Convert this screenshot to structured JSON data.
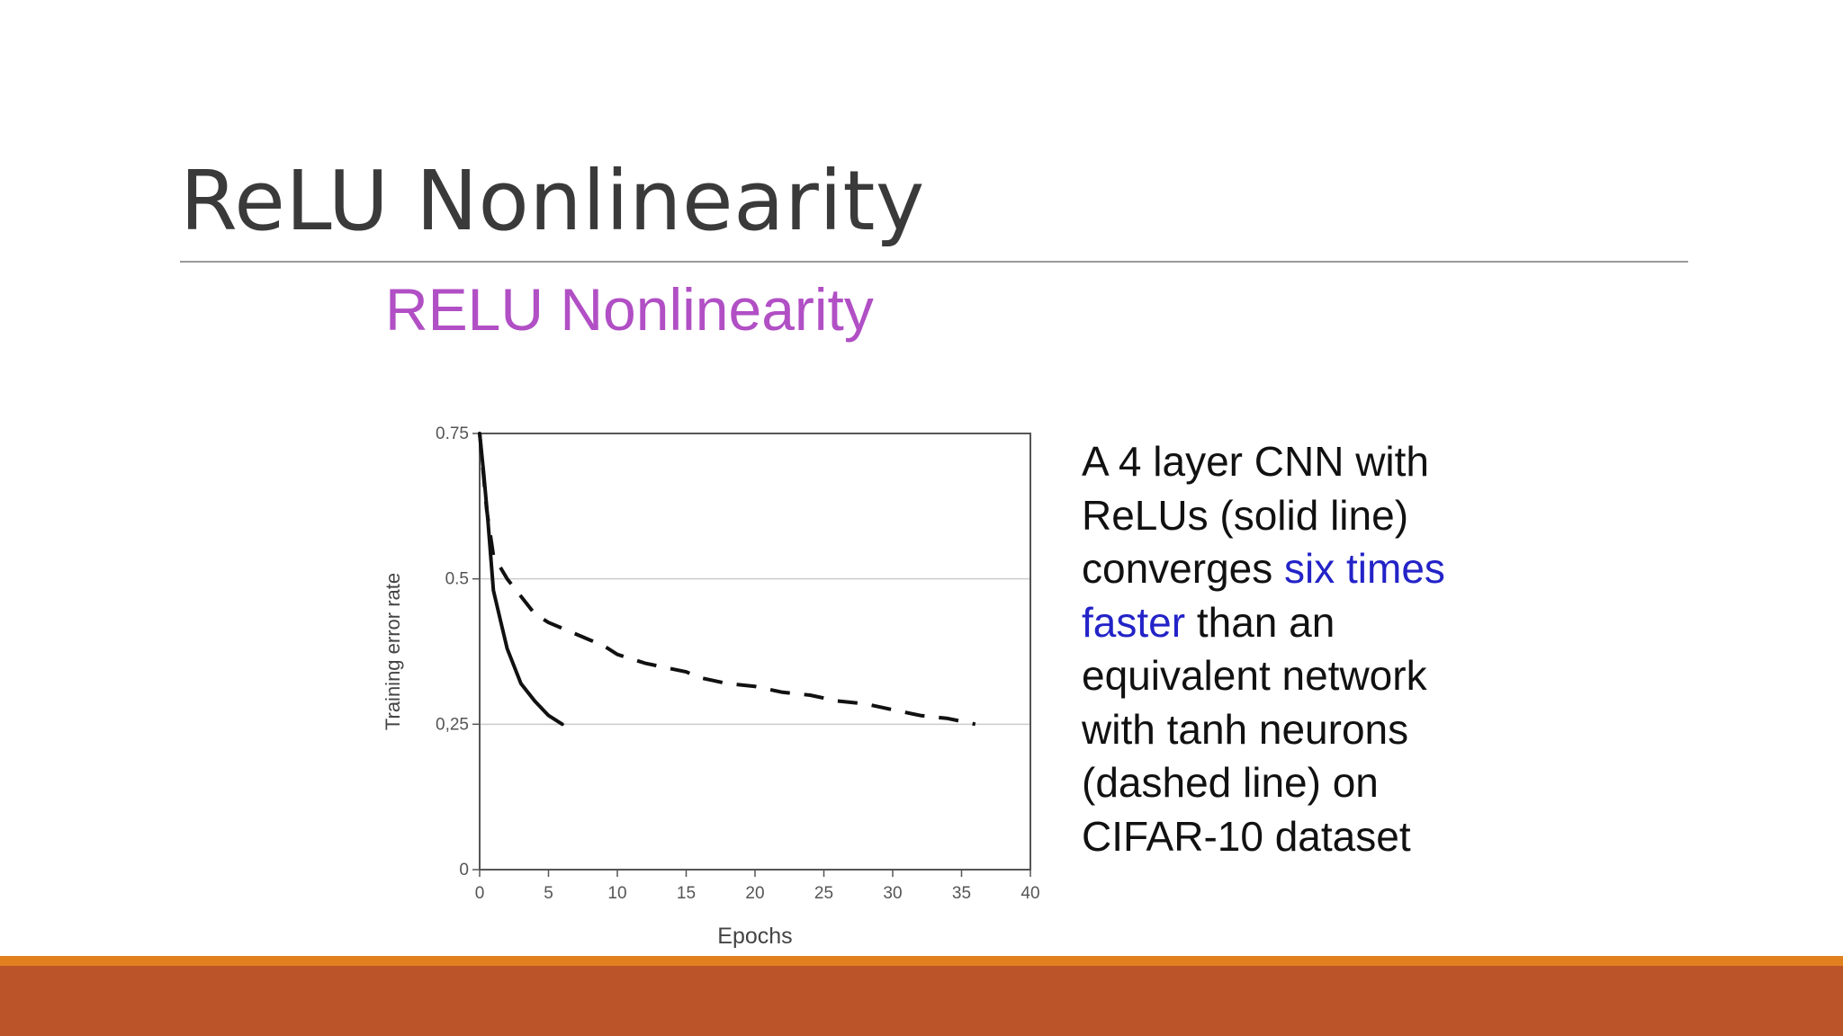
{
  "slide": {
    "title": "ReLU Nonlinearity",
    "caption": {
      "part1": "A 4 layer CNN with ReLUs (solid line) converges ",
      "highlight": "six times faster",
      "part2": " than an equivalent network with tanh neurons (dashed line) on CIFAR-10 dataset",
      "highlight_color": "#2323c8"
    },
    "colors": {
      "title_rule": "#9a9a9a",
      "chart_title": "#b14fc5",
      "footer_top": "#e28020",
      "footer_bottom": "#bb5529"
    }
  },
  "chart_data": {
    "type": "line",
    "title": "RELU Nonlinearity",
    "xlabel": "Epochs",
    "ylabel": "Training error rate",
    "xlim": [
      0,
      40
    ],
    "ylim": [
      0,
      0.75
    ],
    "x_ticks": [
      0,
      5,
      10,
      15,
      20,
      25,
      30,
      35,
      40
    ],
    "x_tick_labels": [
      "0",
      "5",
      "10",
      "15",
      "20",
      "25",
      "30",
      "35",
      "40"
    ],
    "y_ticks": [
      0,
      0.25,
      0.5,
      0.75
    ],
    "y_tick_labels": [
      "0",
      "0,25",
      "0.5",
      "0.75"
    ],
    "grid": "horizontal at 0.25 and 0.5",
    "legend": "none",
    "series": [
      {
        "style": "solid",
        "color": "#111111",
        "x": [
          0,
          0.3,
          0.6,
          1,
          1.5,
          2,
          3,
          4,
          5,
          6
        ],
        "y": [
          0.75,
          0.68,
          0.6,
          0.48,
          0.43,
          0.38,
          0.32,
          0.29,
          0.265,
          0.25
        ]
      },
      {
        "style": "dashed",
        "color": "#111111",
        "x": [
          0,
          0.5,
          1,
          2,
          3,
          4,
          5,
          6,
          7,
          8,
          9,
          10,
          12,
          14,
          15,
          16,
          18,
          20,
          22,
          24,
          26,
          28,
          30,
          32,
          34,
          35,
          36
        ],
        "y": [
          0.75,
          0.62,
          0.54,
          0.5,
          0.47,
          0.44,
          0.425,
          0.415,
          0.405,
          0.395,
          0.385,
          0.37,
          0.355,
          0.345,
          0.34,
          0.33,
          0.32,
          0.315,
          0.305,
          0.3,
          0.29,
          0.285,
          0.275,
          0.265,
          0.26,
          0.255,
          0.25
        ]
      }
    ]
  }
}
